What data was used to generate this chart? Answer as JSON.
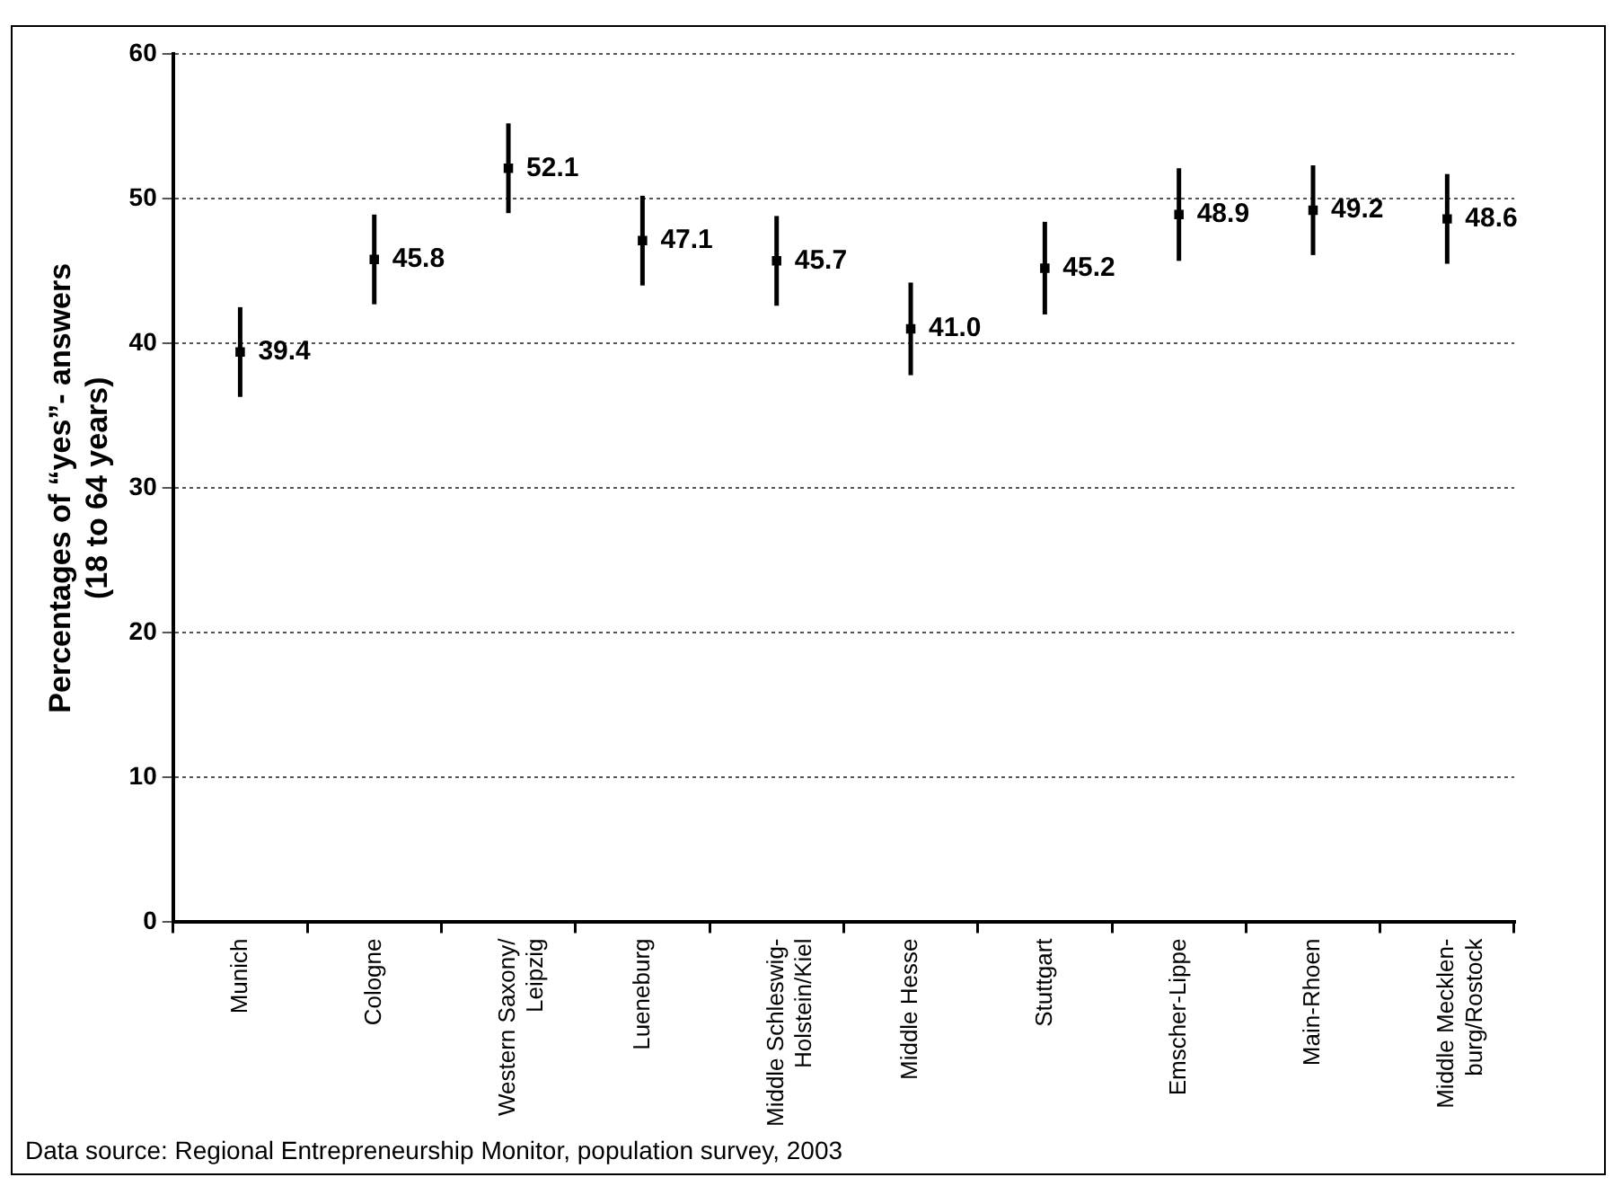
{
  "chart_data": {
    "type": "scatter",
    "ylabel": "Percentages of “yes”- answers\n(18 to 64 years)",
    "categories": [
      "Munich",
      "Cologne",
      "Western Saxony/\nLeipzig",
      "Lueneburg",
      "Middle Schleswig-\nHolstein/Kiel",
      "Middle Hesse",
      "Stuttgart",
      "Emscher-Lippe",
      "Main-Rhoen",
      "Middle Mecklen-\nburg/Rostock"
    ],
    "values": [
      39.4,
      45.8,
      52.1,
      47.1,
      45.7,
      41.0,
      45.2,
      48.9,
      49.2,
      48.6
    ],
    "errors": [
      3.1,
      3.1,
      3.1,
      3.1,
      3.1,
      3.2,
      3.2,
      3.2,
      3.1,
      3.1
    ],
    "color": "#000000",
    "ylim": [
      0,
      60
    ],
    "yticks": [
      0,
      10,
      20,
      30,
      40,
      50,
      60
    ],
    "value_labels": [
      "39.4",
      "45.8",
      "52.1",
      "47.1",
      "45.7",
      "41.0",
      "45.2",
      "48.9",
      "49.2",
      "48.6"
    ],
    "marker": "square",
    "grid": "y",
    "annotations": [
      "Data source: Regional Entrepreneurship Monitor, population survey, 2003"
    ]
  }
}
